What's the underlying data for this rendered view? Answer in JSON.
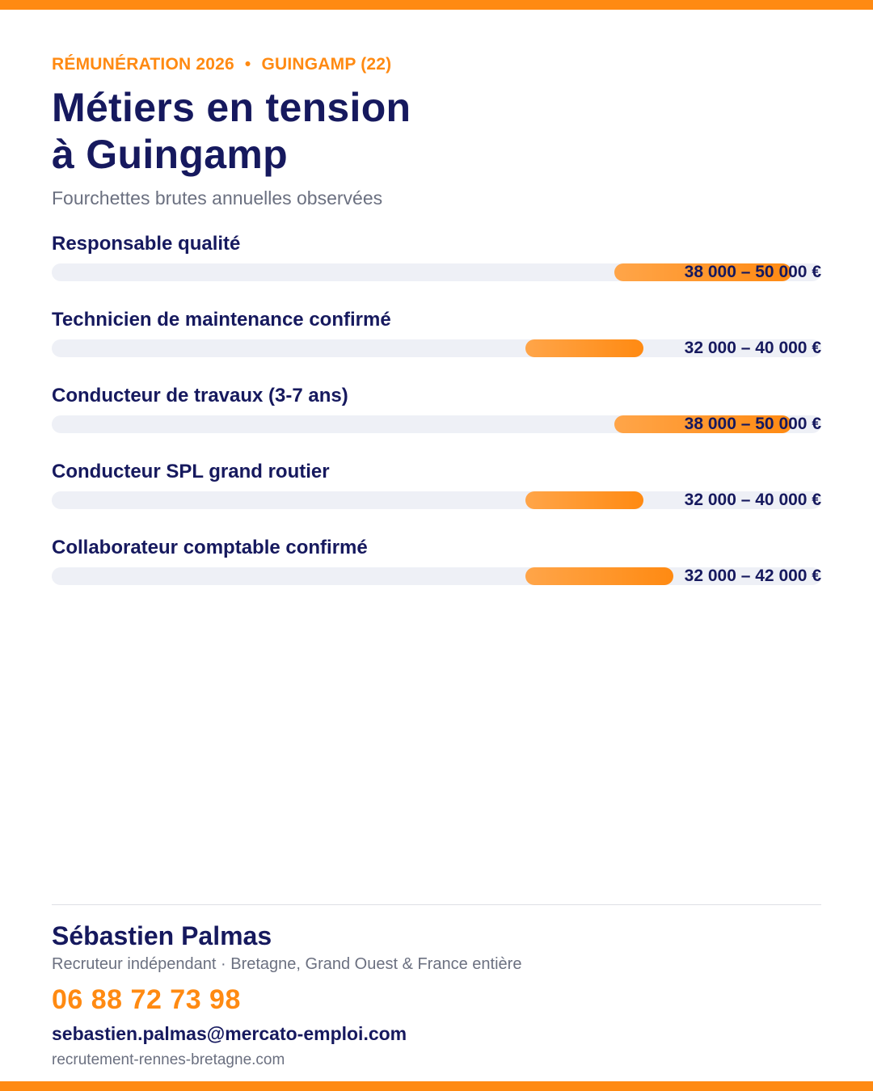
{
  "header": {
    "eyebrow_left": "RÉMUNÉRATION 2026",
    "eyebrow_separator": "•",
    "eyebrow_right": "GUINGAMP (22)",
    "title_line1": "Métiers en tension",
    "title_line2": "à Guingamp",
    "subtitle": "Fourchettes brutes annuelles observées"
  },
  "colors": {
    "accent": "#ff8a12",
    "navy": "#16195e",
    "track": "#eef0f6",
    "muted": "#6b7080"
  },
  "chart_data": {
    "type": "bar",
    "categories": [
      "Responsable qualité",
      "Technicien de maintenance confirmé",
      "Conducteur de travaux (3-7 ans)",
      "Conducteur SPL grand routier",
      "Collaborateur comptable confirmé"
    ],
    "ranges": [
      [
        38000,
        50000
      ],
      [
        32000,
        40000
      ],
      [
        38000,
        50000
      ],
      [
        32000,
        40000
      ],
      [
        32000,
        42000
      ]
    ],
    "value_labels": [
      "38 000 – 50 000 €",
      "32 000 – 40 000 €",
      "38 000 – 50 000 €",
      "32 000 – 40 000 €",
      "32 000 – 42 000 €"
    ],
    "xlim": [
      0,
      52000
    ],
    "grid": false,
    "legend": "none"
  },
  "footer": {
    "name": "Sébastien Palmas",
    "role": "Recruteur indépendant · Bretagne, Grand Ouest & France entière",
    "phone": "06 88 72 73 98",
    "email": "sebastien.palmas@mercato-emploi.com",
    "website": "recrutement-rennes-bretagne.com"
  }
}
